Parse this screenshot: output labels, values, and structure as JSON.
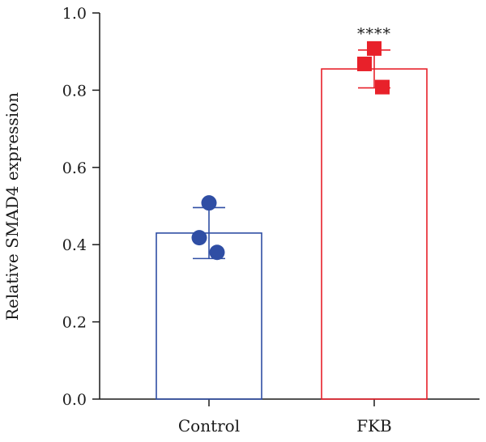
{
  "chart_data": {
    "type": "bar",
    "ylabel": "Relative SMAD4 expression",
    "xlabel": "",
    "ylim": [
      0,
      1.0
    ],
    "yticks": [
      0.0,
      0.2,
      0.4,
      0.6,
      0.8,
      1.0
    ],
    "ytick_labels": [
      "0.0",
      "0.2",
      "0.4",
      "0.6",
      "0.8",
      "1.0"
    ],
    "categories": [
      "Control",
      "FKB"
    ],
    "series": [
      {
        "values": [
          0.43,
          0.855
        ],
        "error": [
          0.066,
          0.049
        ],
        "colors": [
          "#2f4ea4",
          "#e8212a"
        ],
        "points": [
          [
            0.508,
            0.418,
            0.38
          ],
          [
            0.908,
            0.868,
            0.808
          ]
        ],
        "markers": [
          "circle",
          "square"
        ]
      }
    ],
    "annotations": [
      {
        "category": "FKB",
        "text": "****"
      }
    ],
    "grid": false
  }
}
